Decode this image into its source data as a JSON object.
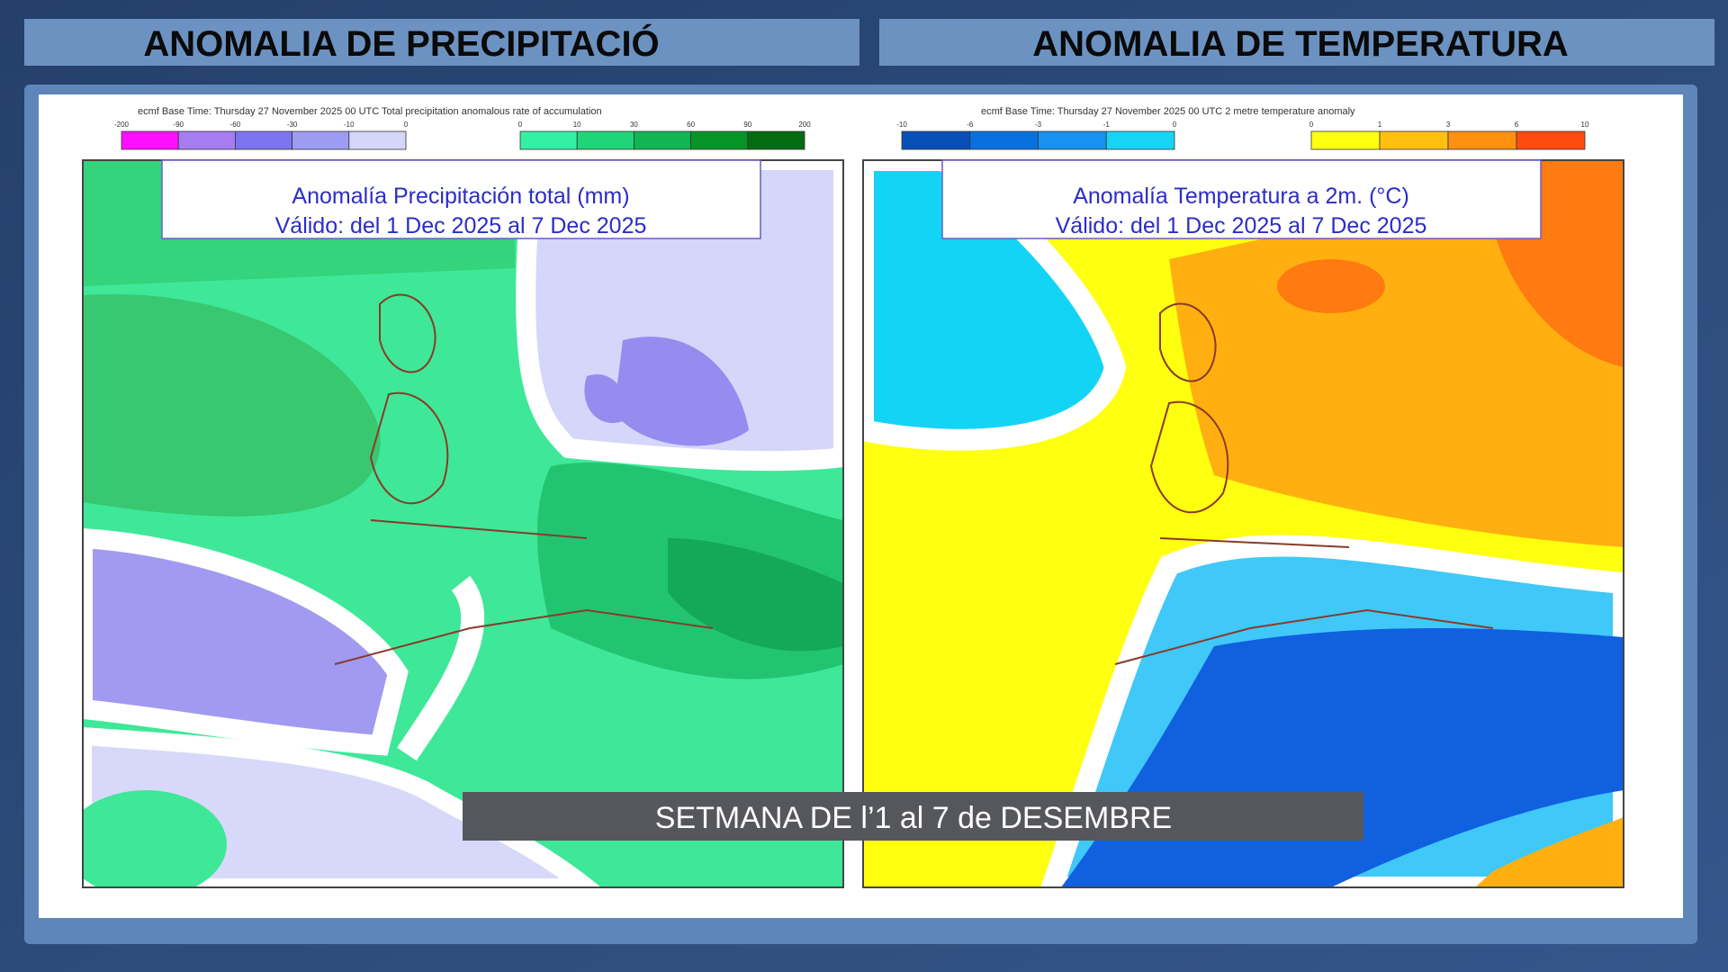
{
  "headers": [
    "ANOMALIA DE PRECIPITACIÓ",
    "ANOMALIA DE TEMPERATURA"
  ],
  "maps": [
    {
      "base_time": "ecmf  Base Time: Thursday 27 November 2025 00 UTC  Total precipitation anomalous rate of accumulation",
      "legend": {
        "negative": {
          "labels": [
            -200,
            -90,
            -60,
            -30,
            -10,
            0
          ],
          "colors": [
            "#ff10ff",
            "#a67cf2",
            "#7c74ee",
            "#9c9cf2",
            "#d6d6fa"
          ]
        },
        "positive": {
          "labels": [
            0,
            10,
            30,
            60,
            90,
            200
          ],
          "colors": [
            "#34f0a4",
            "#20d478",
            "#12b454",
            "#079426",
            "#036c12"
          ]
        }
      },
      "title": "Anomalía Precipitación total (mm)",
      "valid": "Válido: del 1 Dec 2025 al 7 Dec 2025"
    },
    {
      "base_time": "ecmf  Base Time: Thursday 27 November 2025 00 UTC 2 metre temperature anomaly",
      "legend": {
        "negative": {
          "labels": [
            -10,
            -6,
            -3,
            -1,
            0
          ],
          "colors": [
            "#0850b8",
            "#0a70de",
            "#1892f0",
            "#18d4f4"
          ]
        },
        "positive": {
          "labels": [
            0,
            1,
            3,
            6,
            10
          ],
          "colors": [
            "#ffff10",
            "#ffc010",
            "#ff9010",
            "#ff4a10"
          ]
        }
      },
      "title": "Anomalía Temperatura a 2m. (°C)",
      "valid": "Válido: del 1 Dec 2025 al 7 Dec 2025"
    }
  ],
  "caption": "SETMANA DE l’1 al 7 de DESEMBRE"
}
